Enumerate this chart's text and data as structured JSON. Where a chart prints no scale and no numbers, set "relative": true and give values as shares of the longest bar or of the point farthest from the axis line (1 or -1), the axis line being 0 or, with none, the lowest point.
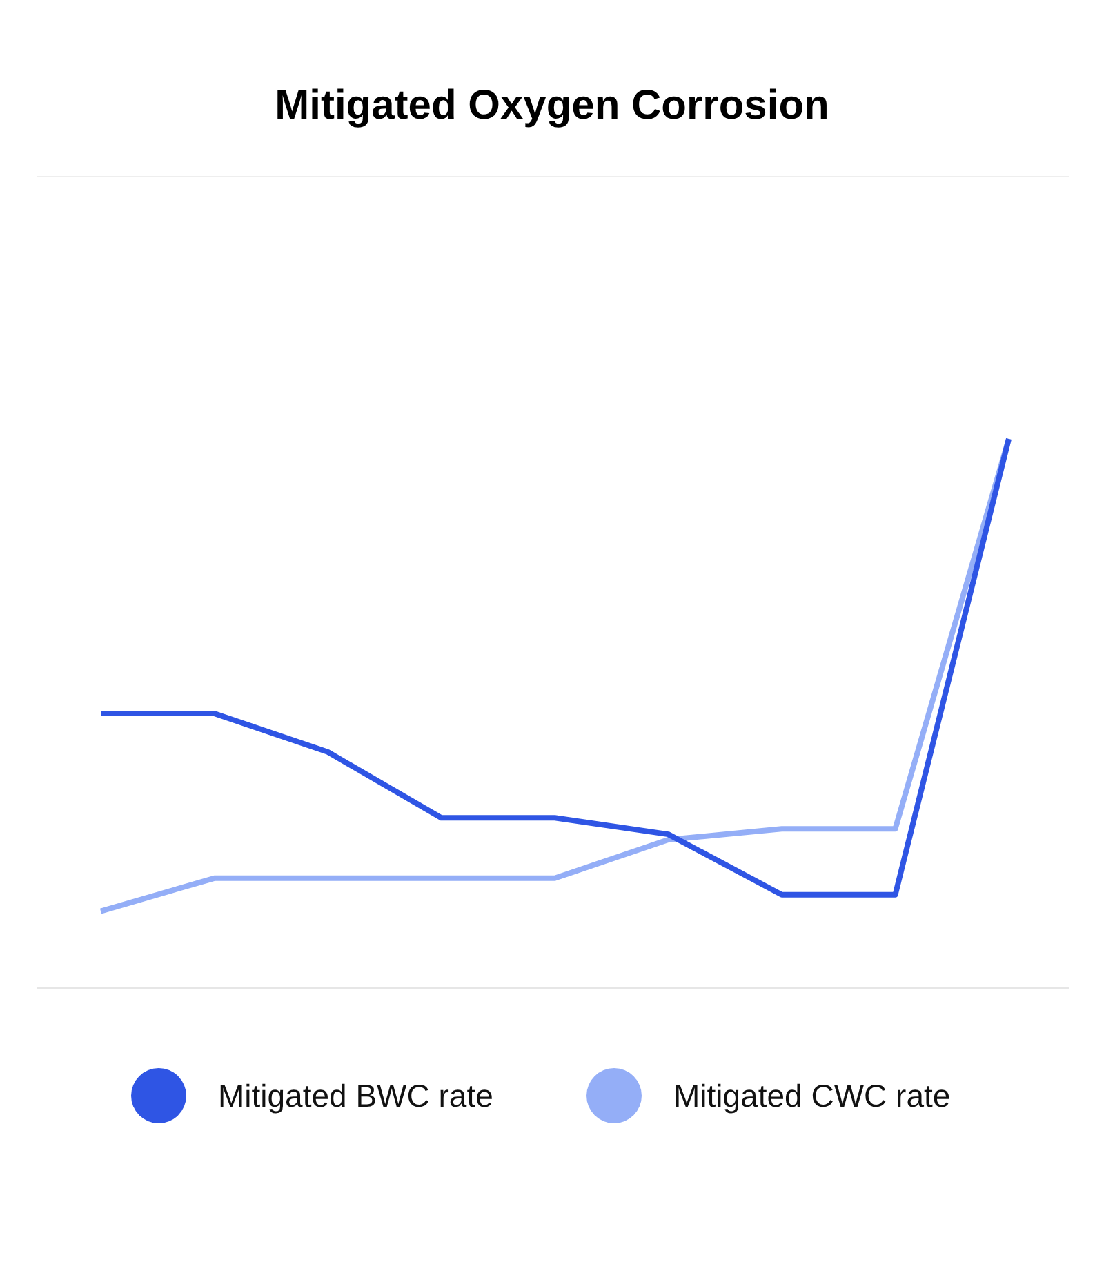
{
  "chart_data": {
    "type": "line",
    "title": "Mitigated Oxygen Corrosion",
    "relative": true,
    "legend": "bottom",
    "categories": [
      null,
      null,
      null,
      null,
      null,
      null,
      null,
      null,
      null
    ],
    "series": [
      {
        "name": "Mitigated BWC rate",
        "color": "#2f55e4",
        "values": [
          0.5,
          0.5,
          0.43,
          0.31,
          0.31,
          0.28,
          0.17,
          0.17,
          1
        ]
      },
      {
        "name": "Mitigated CWC rate",
        "color": "#94aef7",
        "values": [
          0.14,
          0.2,
          0.2,
          0.2,
          0.2,
          0.27,
          0.29,
          0.29,
          1
        ]
      }
    ]
  }
}
